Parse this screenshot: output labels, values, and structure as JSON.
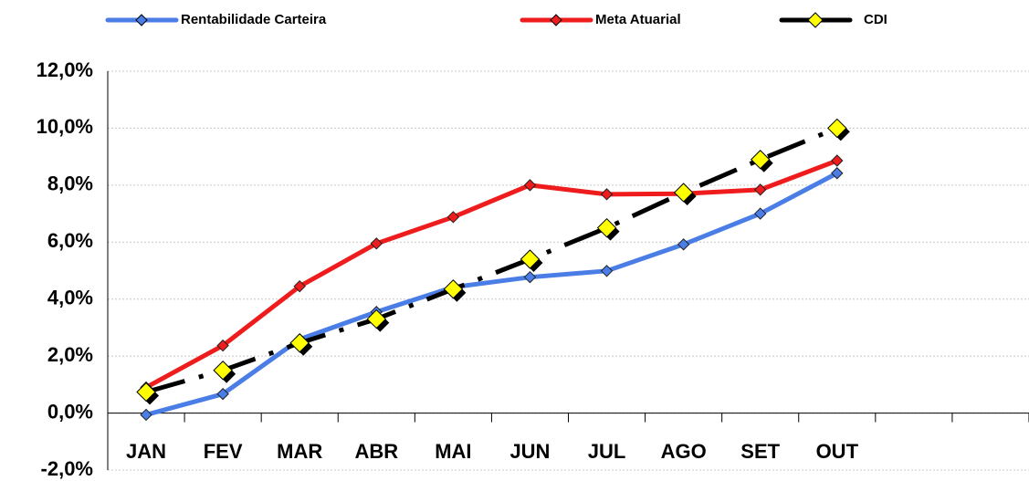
{
  "chart_data": {
    "type": "line",
    "categories": [
      "JAN",
      "FEV",
      "MAR",
      "ABR",
      "MAI",
      "JUN",
      "JUL",
      "AGO",
      "SET",
      "OUT",
      null,
      null
    ],
    "series": [
      {
        "name": "Rentabilidade Carteira",
        "color": "#4a7ee6",
        "marker_color": "#4a7ee6",
        "values": [
          -0.06,
          0.67,
          2.59,
          3.55,
          4.42,
          4.77,
          4.99,
          5.92,
          7.0,
          8.42,
          null,
          null
        ]
      },
      {
        "name": "Meta Atuarial",
        "color": "#ee1c1c",
        "marker_color": "#ee1c1c",
        "values": [
          0.9,
          2.37,
          4.45,
          5.95,
          6.88,
          8.0,
          7.68,
          7.7,
          7.84,
          8.86,
          null,
          null
        ]
      },
      {
        "name": "CDI",
        "color": "#000000",
        "marker_color": "#ffff00",
        "dashed": true,
        "values": [
          0.74,
          1.5,
          2.46,
          3.3,
          4.35,
          5.4,
          6.5,
          7.74,
          8.9,
          10.0,
          null,
          null
        ]
      }
    ],
    "ylim": [
      -2,
      12
    ],
    "yticks": [
      {
        "value": -2,
        "label": "-2,0%"
      },
      {
        "value": 0,
        "label": "0,0%"
      },
      {
        "value": 2,
        "label": "2,0%"
      },
      {
        "value": 4,
        "label": "4,0%"
      },
      {
        "value": 6,
        "label": "6,0%"
      },
      {
        "value": 8,
        "label": "8,0%"
      },
      {
        "value": 10,
        "label": "10,0%"
      },
      {
        "value": 12,
        "label": "12,0%"
      }
    ],
    "grid": true,
    "legend": "top"
  }
}
